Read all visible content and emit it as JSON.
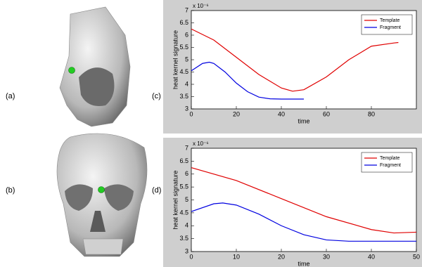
{
  "panel_labels": [
    "(a)",
    "(b)",
    "(c)",
    "(d)"
  ],
  "chart_data": [
    {
      "type": "line",
      "x_label": "time",
      "y_label": "heat kernel signature",
      "multiplier": "x 10⁻⁶",
      "xlim": [
        0,
        100
      ],
      "xticks": [
        0,
        20,
        40,
        60,
        80
      ],
      "ylim": [
        3,
        7
      ],
      "yticks": [
        3,
        3.5,
        4,
        4.5,
        5,
        5.5,
        6,
        6.5,
        7
      ],
      "legend": "upper right",
      "series": [
        {
          "name": "Template",
          "color": "#e00000",
          "x": [
            0,
            10,
            20,
            30,
            40,
            45,
            50,
            60,
            70,
            80,
            90,
            92
          ],
          "values": [
            6.25,
            5.8,
            5.1,
            4.4,
            3.85,
            3.72,
            3.78,
            4.3,
            5.0,
            5.55,
            5.68,
            5.7
          ]
        },
        {
          "name": "Fragment",
          "color": "#0000e0",
          "x": [
            0,
            5,
            8,
            10,
            15,
            20,
            25,
            30,
            35,
            40,
            50
          ],
          "values": [
            4.55,
            4.85,
            4.9,
            4.85,
            4.5,
            4.05,
            3.7,
            3.48,
            3.41,
            3.4,
            3.4
          ]
        }
      ]
    },
    {
      "type": "line",
      "x_label": "time",
      "y_label": "heat kernel signature",
      "multiplier": "x 10⁻⁶",
      "xlim": [
        0,
        50
      ],
      "xticks": [
        0,
        10,
        20,
        30,
        40,
        50
      ],
      "ylim": [
        3,
        7
      ],
      "yticks": [
        3,
        3.5,
        4,
        4.5,
        5,
        5.5,
        6,
        6.5,
        7
      ],
      "legend": "upper right",
      "series": [
        {
          "name": "Template",
          "color": "#e00000",
          "x": [
            0,
            10,
            20,
            30,
            40,
            45,
            50
          ],
          "values": [
            6.25,
            5.75,
            5.05,
            4.35,
            3.85,
            3.72,
            3.75
          ]
        },
        {
          "name": "Fragment",
          "color": "#0000e0",
          "x": [
            0,
            5,
            7,
            10,
            15,
            20,
            25,
            30,
            35,
            40,
            50
          ],
          "values": [
            4.55,
            4.85,
            4.88,
            4.8,
            4.45,
            4.0,
            3.65,
            3.45,
            3.4,
            3.4,
            3.4
          ]
        }
      ]
    }
  ]
}
